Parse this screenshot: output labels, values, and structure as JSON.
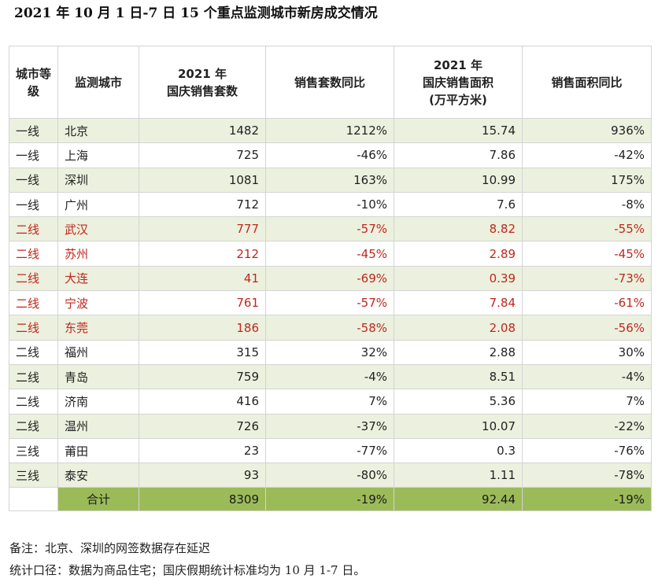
{
  "title": "2021 年 10 月 1 日-7 日 15 个重点监测城市新房成交情况",
  "headers": {
    "tier": "城市等级",
    "city": "监测城市",
    "units_line1": "2021 年",
    "units_line2": "国庆销售套数",
    "units_yoy": "销售套数同比",
    "area_line1": "2021 年",
    "area_line2": "国庆销售面积",
    "area_line3": "(万平方米)",
    "area_yoy": "销售面积同比"
  },
  "colors": {
    "green_row": "#ebf1de",
    "total_row": "#9bbb59",
    "highlight_text": "#c0271d"
  },
  "rows": [
    {
      "tier": "一线",
      "city": "北京",
      "units": "1482",
      "units_yoy": "1212%",
      "area": "15.74",
      "area_yoy": "936%",
      "highlight": false
    },
    {
      "tier": "一线",
      "city": "上海",
      "units": "725",
      "units_yoy": "-46%",
      "area": "7.86",
      "area_yoy": "-42%",
      "highlight": false
    },
    {
      "tier": "一线",
      "city": "深圳",
      "units": "1081",
      "units_yoy": "163%",
      "area": "10.99",
      "area_yoy": "175%",
      "highlight": false
    },
    {
      "tier": "一线",
      "city": "广州",
      "units": "712",
      "units_yoy": "-10%",
      "area": "7.6",
      "area_yoy": "-8%",
      "highlight": false
    },
    {
      "tier": "二线",
      "city": "武汉",
      "units": "777",
      "units_yoy": "-57%",
      "area": "8.82",
      "area_yoy": "-55%",
      "highlight": true
    },
    {
      "tier": "二线",
      "city": "苏州",
      "units": "212",
      "units_yoy": "-45%",
      "area": "2.89",
      "area_yoy": "-45%",
      "highlight": true
    },
    {
      "tier": "二线",
      "city": "大连",
      "units": "41",
      "units_yoy": "-69%",
      "area": "0.39",
      "area_yoy": "-73%",
      "highlight": true
    },
    {
      "tier": "二线",
      "city": "宁波",
      "units": "761",
      "units_yoy": "-57%",
      "area": "7.84",
      "area_yoy": "-61%",
      "highlight": true
    },
    {
      "tier": "二线",
      "city": "东莞",
      "units": "186",
      "units_yoy": "-58%",
      "area": "2.08",
      "area_yoy": "-56%",
      "highlight": true
    },
    {
      "tier": "二线",
      "city": "福州",
      "units": "315",
      "units_yoy": "32%",
      "area": "2.88",
      "area_yoy": "30%",
      "highlight": false
    },
    {
      "tier": "二线",
      "city": "青岛",
      "units": "759",
      "units_yoy": "-4%",
      "area": "8.51",
      "area_yoy": "-4%",
      "highlight": false
    },
    {
      "tier": "二线",
      "city": "济南",
      "units": "416",
      "units_yoy": "7%",
      "area": "5.36",
      "area_yoy": "7%",
      "highlight": false
    },
    {
      "tier": "二线",
      "city": "温州",
      "units": "726",
      "units_yoy": "-37%",
      "area": "10.07",
      "area_yoy": "-22%",
      "highlight": false
    },
    {
      "tier": "三线",
      "city": "莆田",
      "units": "23",
      "units_yoy": "-77%",
      "area": "0.3",
      "area_yoy": "-76%",
      "highlight": false
    },
    {
      "tier": "三线",
      "city": "泰安",
      "units": "93",
      "units_yoy": "-80%",
      "area": "1.11",
      "area_yoy": "-78%",
      "highlight": false
    }
  ],
  "total": {
    "label": "合计",
    "units": "8309",
    "units_yoy": "-19%",
    "area": "92.44",
    "area_yoy": "-19%"
  },
  "notes": [
    "备注：北京、深圳的网签数据存在延迟",
    "统计口径：数据为商品住宅；国庆假期统计标准均为 10 月 1-7 日。"
  ]
}
